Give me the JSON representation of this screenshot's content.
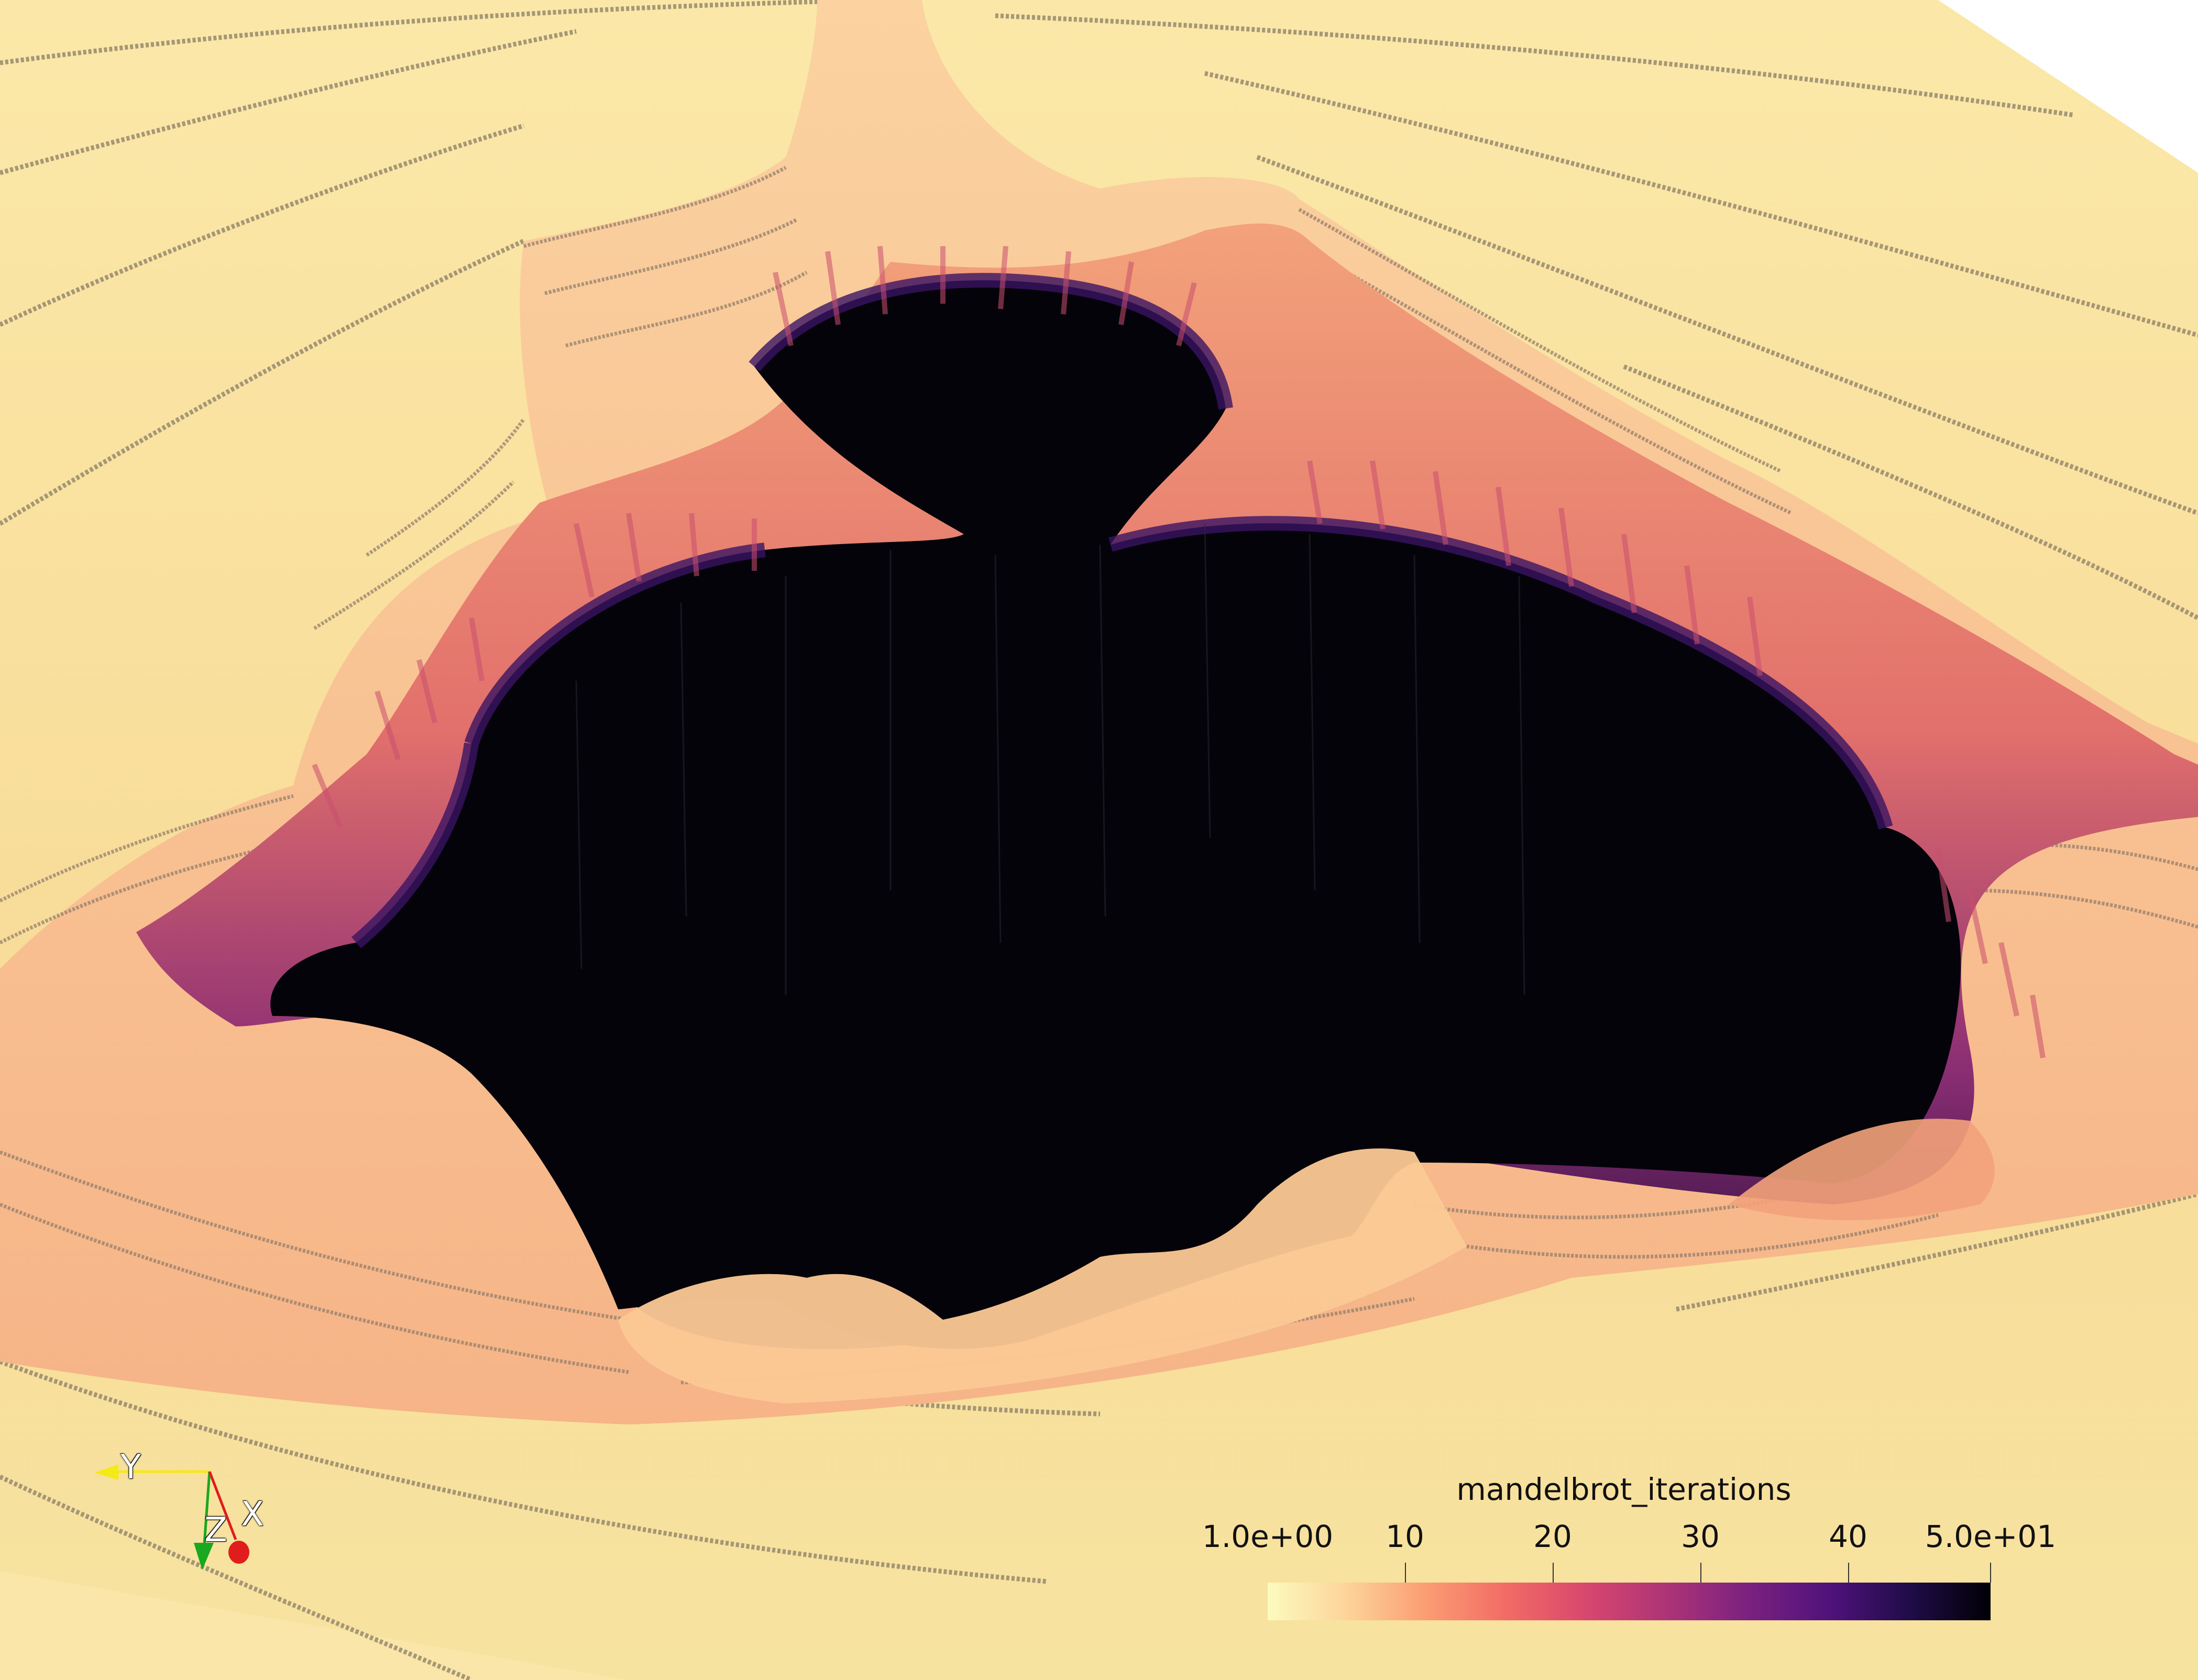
{
  "scene": {
    "colors": {
      "background_plane": "#f7e39a",
      "surface_light": "#fbd6a2",
      "surface_mid": "#f6a97c",
      "ridge_pink": "#e9806f",
      "ridge_magenta": "#b5366c",
      "ridge_purple": "#4b1d6b",
      "set_interior": "#03030a",
      "contour": "#7d7060"
    }
  },
  "orientation_axes": {
    "y_label": "Y",
    "z_label": "Z",
    "x_label": "X",
    "y_color": "#f4ea17",
    "z_color": "#19a81f",
    "x_color": "#e01c1c"
  },
  "colorbar": {
    "title": "mandelbrot_iterations",
    "range": [
      1,
      50
    ],
    "tick_labels": [
      "1.0e+00",
      "10",
      "20",
      "30",
      "40",
      "5.0e+01"
    ],
    "tick_values": [
      1,
      10,
      20,
      30,
      40,
      50
    ],
    "colormap": "magma (inverted)",
    "gradient_stops": [
      "#fcfbbd",
      "#fdd39a",
      "#fb9b72",
      "#f26a65",
      "#d7466e",
      "#ab3377",
      "#7a2180",
      "#4f127b",
      "#1f0c48",
      "#000004"
    ]
  }
}
